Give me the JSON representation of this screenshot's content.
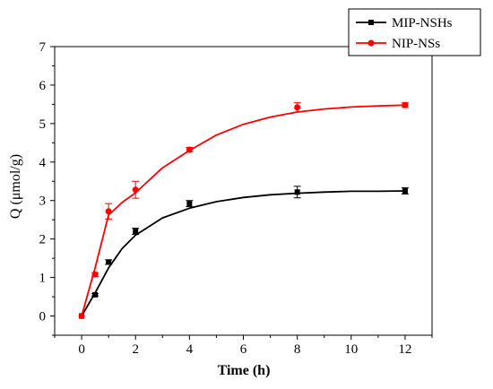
{
  "chart_data": {
    "type": "line",
    "xlabel": "Time (h)",
    "ylabel": "Q (μmol/g)",
    "xlim": [
      -1,
      13
    ],
    "ylim": [
      -0.5,
      7
    ],
    "x_ticks": [
      "0",
      "2",
      "4",
      "6",
      "8",
      "10",
      "12"
    ],
    "y_ticks": [
      "0",
      "1",
      "2",
      "3",
      "4",
      "5",
      "6",
      "7"
    ],
    "legend_position": "top-right",
    "grid": false,
    "series": [
      {
        "name": "MIP-NSHs",
        "color": "#000000",
        "marker": "square",
        "x": [
          0,
          0.5,
          1,
          2,
          4,
          8,
          12
        ],
        "y": [
          0,
          0.55,
          1.4,
          2.2,
          2.92,
          3.22,
          3.25
        ],
        "error": [
          0,
          0.03,
          0.06,
          0.08,
          0.08,
          0.15,
          0.08
        ],
        "fit_curve": [
          [
            0,
            0
          ],
          [
            0.5,
            0.6
          ],
          [
            1,
            1.25
          ],
          [
            1.5,
            1.75
          ],
          [
            2,
            2.1
          ],
          [
            3,
            2.55
          ],
          [
            4,
            2.8
          ],
          [
            5,
            2.97
          ],
          [
            6,
            3.08
          ],
          [
            7,
            3.15
          ],
          [
            8,
            3.19
          ],
          [
            9,
            3.22
          ],
          [
            10,
            3.24
          ],
          [
            11,
            3.24
          ],
          [
            12,
            3.25
          ]
        ]
      },
      {
        "name": "NIP-NSs",
        "color": "#ff0000",
        "marker": "circle",
        "x": [
          0,
          0.5,
          1,
          2,
          4,
          8,
          12
        ],
        "y": [
          0,
          1.08,
          2.72,
          3.28,
          4.32,
          5.42,
          5.48
        ],
        "error": [
          0,
          0.05,
          0.2,
          0.22,
          0.06,
          0.12,
          0.06
        ],
        "fit_curve": [
          [
            0,
            0
          ],
          [
            0.5,
            1.25
          ],
          [
            1,
            2.62
          ],
          [
            1.5,
            2.95
          ],
          [
            2,
            3.2
          ],
          [
            3,
            3.85
          ],
          [
            4,
            4.3
          ],
          [
            5,
            4.7
          ],
          [
            6,
            4.98
          ],
          [
            7,
            5.17
          ],
          [
            8,
            5.3
          ],
          [
            9,
            5.38
          ],
          [
            10,
            5.43
          ],
          [
            11,
            5.46
          ],
          [
            12,
            5.48
          ]
        ]
      }
    ]
  }
}
